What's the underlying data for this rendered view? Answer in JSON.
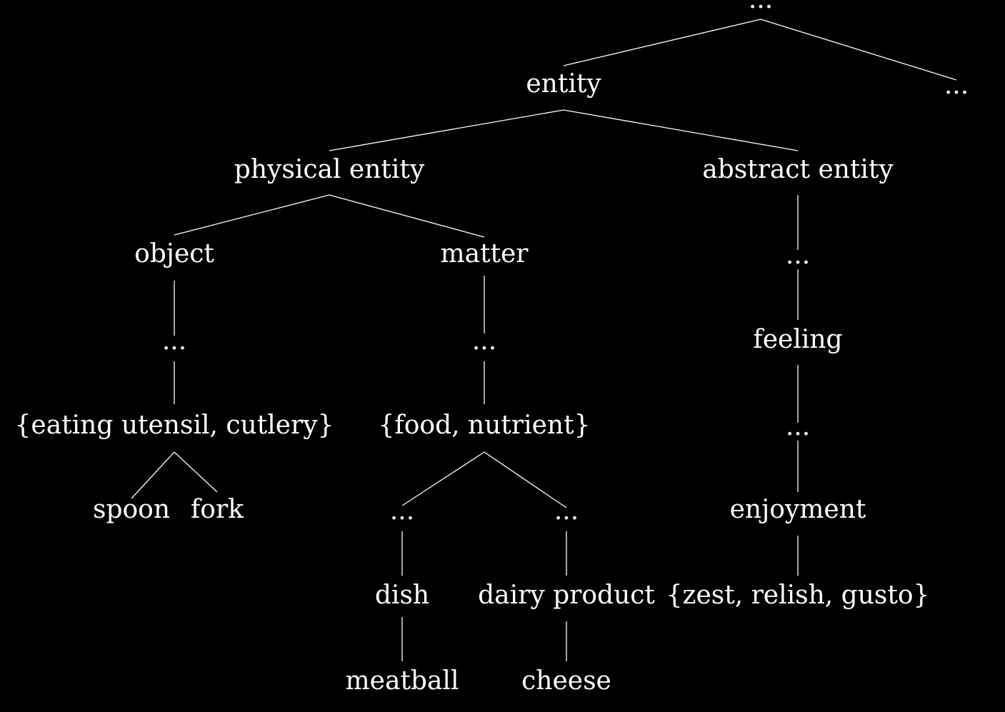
{
  "colors": {
    "background": "#000000",
    "foreground": "#ffffff"
  },
  "nodes": {
    "root": "...",
    "entity": "entity",
    "root_other": "...",
    "physical_entity": "physical entity",
    "abstract_entity": "abstract entity",
    "object": "object",
    "matter": "matter",
    "abstract_gap": "...",
    "object_gap": "...",
    "matter_gap": "...",
    "feeling": "feeling",
    "eating_utensil": "{eating utensil, cutlery}",
    "food": "{food, nutrient}",
    "feeling_gap": "...",
    "spoon": "spoon",
    "fork": "fork",
    "food_gap_1": "...",
    "food_gap_2": "...",
    "enjoyment": "enjoyment",
    "dish": "dish",
    "dairy_product": "dairy product",
    "zest": "{zest, relish, gusto}",
    "meatball": "meatball",
    "cheese": "cheese"
  },
  "edges": [
    [
      "root",
      "entity"
    ],
    [
      "root",
      "root_other"
    ],
    [
      "entity",
      "physical_entity"
    ],
    [
      "entity",
      "abstract_entity"
    ],
    [
      "physical_entity",
      "object"
    ],
    [
      "physical_entity",
      "matter"
    ],
    [
      "abstract_entity",
      "abstract_gap"
    ],
    [
      "object",
      "object_gap"
    ],
    [
      "matter",
      "matter_gap"
    ],
    [
      "abstract_gap",
      "feeling"
    ],
    [
      "object_gap",
      "eating_utensil"
    ],
    [
      "matter_gap",
      "food"
    ],
    [
      "feeling",
      "feeling_gap"
    ],
    [
      "eating_utensil",
      "spoon"
    ],
    [
      "eating_utensil",
      "fork"
    ],
    [
      "food",
      "food_gap_1"
    ],
    [
      "food",
      "food_gap_2"
    ],
    [
      "feeling_gap",
      "enjoyment"
    ],
    [
      "food_gap_1",
      "dish"
    ],
    [
      "food_gap_2",
      "dairy_product"
    ],
    [
      "enjoyment",
      "zest"
    ],
    [
      "dish",
      "meatball"
    ],
    [
      "dairy_product",
      "cheese"
    ]
  ]
}
